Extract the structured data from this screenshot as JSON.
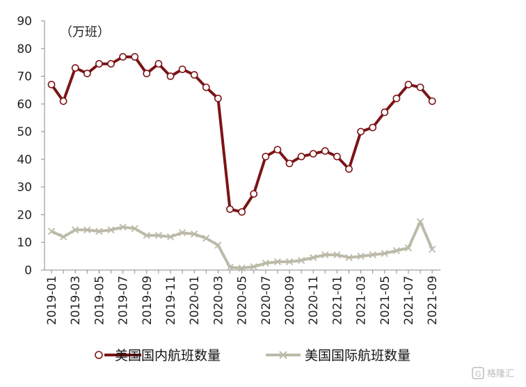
{
  "chart_data": {
    "type": "line",
    "unit_label": "（万班）",
    "ylim": [
      0,
      90
    ],
    "y_ticks": [
      0,
      10,
      20,
      30,
      40,
      50,
      60,
      70,
      80,
      90
    ],
    "x": [
      "2019-01",
      "2019-02",
      "2019-03",
      "2019-04",
      "2019-05",
      "2019-06",
      "2019-07",
      "2019-08",
      "2019-09",
      "2019-10",
      "2019-11",
      "2019-12",
      "2020-01",
      "2020-02",
      "2020-03",
      "2020-04",
      "2020-05",
      "2020-06",
      "2020-07",
      "2020-08",
      "2020-09",
      "2020-10",
      "2020-11",
      "2020-12",
      "2021-01",
      "2021-02",
      "2021-03",
      "2021-04",
      "2021-05",
      "2021-06",
      "2021-07",
      "2021-08",
      "2021-09"
    ],
    "x_tick_labels": [
      "2019-01",
      "2019-03",
      "2019-05",
      "2019-07",
      "2019-09",
      "2019-11",
      "2020-01",
      "2020-03",
      "2020-05",
      "2020-07",
      "2020-09",
      "2020-11",
      "2021-01",
      "2021-03",
      "2021-05",
      "2021-07",
      "2021-09"
    ],
    "grid": false,
    "legend_position": "bottom",
    "series": [
      {
        "name": "美国国内航班数量",
        "color": "#7b1416",
        "marker": "open-circle",
        "values": [
          67,
          61,
          73,
          71,
          74.5,
          74.5,
          77,
          77,
          71,
          74.5,
          70,
          72.5,
          70.5,
          66,
          62,
          22,
          21,
          27.5,
          41,
          43.5,
          38.5,
          41,
          42,
          43,
          41,
          36.5,
          50,
          51.5,
          57,
          62,
          67,
          66,
          61
        ]
      },
      {
        "name": "美国国际航班数量",
        "color": "#bcbaa8",
        "marker": "x",
        "values": [
          14,
          12,
          14.5,
          14.5,
          14,
          14.5,
          15.5,
          15,
          12.5,
          12.5,
          12,
          13.5,
          13,
          11.5,
          9,
          1,
          0.7,
          1.2,
          2.5,
          3,
          3,
          3.5,
          4.5,
          5.5,
          5.5,
          4.5,
          5,
          5.5,
          6,
          7,
          8,
          17.5,
          7.5
        ]
      }
    ]
  },
  "watermark": {
    "text": "格隆汇",
    "icon": "brand-logo-icon"
  }
}
